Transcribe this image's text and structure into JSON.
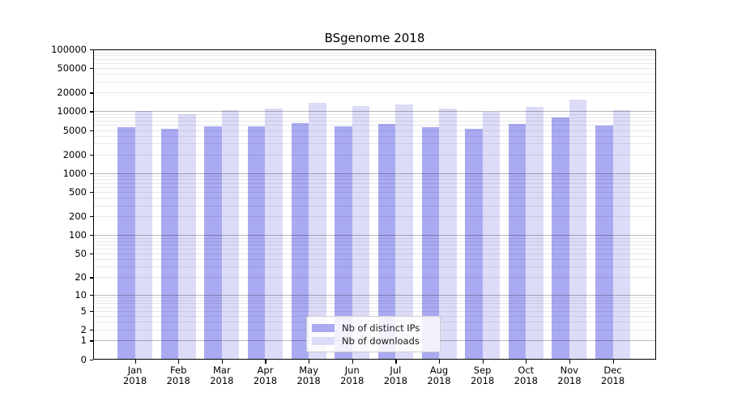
{
  "title": "BSgenome 2018",
  "colors": {
    "bar_distinct_ips": "#aaaaf2",
    "bar_downloads": "#dcdcf8",
    "grid_minor": "rgba(0,0,0,0.09)",
    "grid_major": "rgba(0,0,0,0.28)",
    "axis": "#000000",
    "legend_border": "#cccccc",
    "background": "#ffffff"
  },
  "chart_data": {
    "type": "bar",
    "title": "BSgenome 2018",
    "categories": [
      "Jan 2018",
      "Feb 2018",
      "Mar 2018",
      "Apr 2018",
      "May 2018",
      "Jun 2018",
      "Jul 2018",
      "Aug 2018",
      "Sep 2018",
      "Oct 2018",
      "Nov 2018",
      "Dec 2018"
    ],
    "x_tick_line1": [
      "Jan",
      "Feb",
      "Mar",
      "Apr",
      "May",
      "Jun",
      "Jul",
      "Aug",
      "Sep",
      "Oct",
      "Nov",
      "Dec"
    ],
    "x_tick_line2": "2018",
    "series": [
      {
        "name": "Nb of distinct IPs",
        "color": "#aaaaf2",
        "values": [
          5500,
          5200,
          5700,
          5700,
          6400,
          5700,
          6200,
          5600,
          5200,
          6200,
          8000,
          5900
        ]
      },
      {
        "name": "Nb of downloads",
        "color": "#dcdcf8",
        "values": [
          10100,
          9000,
          10600,
          11000,
          13600,
          12200,
          12900,
          11000,
          9900,
          11900,
          15300,
          10500
        ]
      }
    ],
    "y_scale": "log10(1+x)",
    "ylim": [
      0,
      100000
    ],
    "y_ticks": [
      0,
      1,
      2,
      5,
      10,
      20,
      50,
      100,
      200,
      500,
      1000,
      2000,
      5000,
      10000,
      20000,
      50000,
      100000
    ],
    "grid": "horizontal log minor and major, drawn over bars",
    "legend_position": "lower center"
  },
  "legend": {
    "items": [
      {
        "label": "Nb of distinct IPs"
      },
      {
        "label": "Nb of downloads"
      }
    ]
  }
}
